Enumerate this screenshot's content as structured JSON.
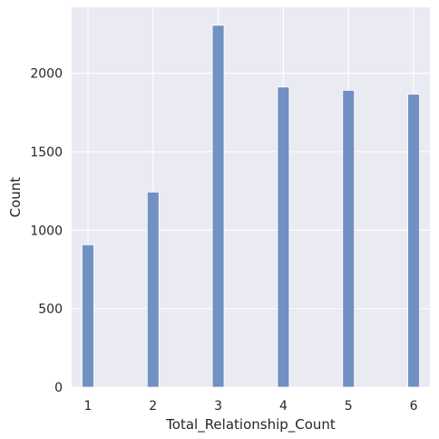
{
  "chart_data": {
    "type": "bar",
    "title": "",
    "xlabel": "Total_Relationship_Count",
    "ylabel": "Count",
    "x": [
      1,
      2,
      3,
      4,
      5,
      6
    ],
    "values": [
      907,
      1243,
      2305,
      1912,
      1891,
      1866
    ],
    "xlim": [
      0.75,
      6.25
    ],
    "ylim": [
      0,
      2420
    ],
    "xticks": [
      "1",
      "2",
      "3",
      "4",
      "5",
      "6"
    ],
    "yticks": [
      "0",
      "500",
      "1000",
      "1500",
      "2000"
    ],
    "ytick_values": [
      0,
      500,
      1000,
      1500,
      2000
    ],
    "grid": true,
    "colors": {
      "background": "#EAEAF2",
      "bar": "#7191C4",
      "bar_edge": "#FFFFFF",
      "grid": "#FFFFFF",
      "text": "#262626"
    }
  }
}
